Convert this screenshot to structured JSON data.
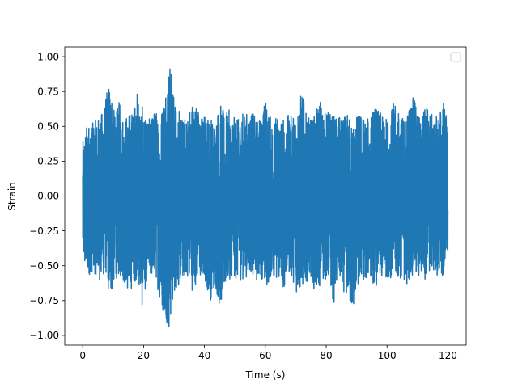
{
  "chart_data": {
    "type": "line",
    "title": "",
    "xlabel": "Time (s)",
    "ylabel": "Strain",
    "xlim": [
      -5.9,
      126.0
    ],
    "ylim": [
      -1.07,
      1.07
    ],
    "x_ticks": [
      0,
      20,
      40,
      60,
      80,
      100,
      120
    ],
    "x_tick_labels": [
      "0",
      "20",
      "40",
      "60",
      "80",
      "100",
      "120"
    ],
    "y_ticks": [
      -1.0,
      -0.75,
      -0.5,
      -0.25,
      0.0,
      0.25,
      0.5,
      0.75,
      1.0
    ],
    "y_tick_labels": [
      "−1.00",
      "−0.75",
      "−0.50",
      "−0.25",
      "0.00",
      "0.25",
      "0.50",
      "0.75",
      "1.00"
    ],
    "grid": false,
    "legend": {
      "placement": "top-right",
      "entries": []
    },
    "series": [
      {
        "x_range": [
          0,
          120
        ],
        "color": "#1f77b4",
        "envelope": {
          "x": [
            0,
            1.5,
            3,
            4.5,
            6,
            7.5,
            9,
            10.5,
            12,
            13.5,
            15,
            16.5,
            18,
            19.5,
            21,
            22.5,
            24,
            25.5,
            27,
            28.5,
            30,
            31.5,
            33,
            34.5,
            36,
            37.5,
            39,
            40.5,
            42,
            43.5,
            45,
            46.5,
            48,
            49.5,
            51,
            52.5,
            54,
            55.5,
            57,
            58.5,
            60,
            61.5,
            63,
            64.5,
            66,
            67.5,
            69,
            70.5,
            72,
            73.5,
            75,
            76.5,
            78,
            79.5,
            81,
            82.5,
            84,
            85.5,
            87,
            88.5,
            90,
            91.5,
            93,
            94.5,
            96,
            97.5,
            99,
            100.5,
            102,
            103.5,
            105,
            106.5,
            108,
            109.5,
            111,
            112.5,
            114,
            115.5,
            117,
            118.5,
            120
          ],
          "upper": [
            0.38,
            0.53,
            0.52,
            0.55,
            0.58,
            0.7,
            0.86,
            0.58,
            0.68,
            0.57,
            0.6,
            0.62,
            0.76,
            0.65,
            0.52,
            0.6,
            0.62,
            0.58,
            0.8,
            1.0,
            0.73,
            0.62,
            0.55,
            0.6,
            0.7,
            0.65,
            0.58,
            0.6,
            0.57,
            0.55,
            0.68,
            0.6,
            0.62,
            0.57,
            0.55,
            0.6,
            0.6,
            0.62,
            0.55,
            0.57,
            0.7,
            0.58,
            0.55,
            0.62,
            0.56,
            0.58,
            0.58,
            0.64,
            0.76,
            0.58,
            0.55,
            0.6,
            0.72,
            0.6,
            0.62,
            0.58,
            0.57,
            0.55,
            0.6,
            0.53,
            0.58,
            0.6,
            0.55,
            0.57,
            0.66,
            0.6,
            0.58,
            0.55,
            0.67,
            0.62,
            0.57,
            0.6,
            0.72,
            0.68,
            0.55,
            0.68,
            0.62,
            0.55,
            0.6,
            0.7,
            0.53
          ],
          "lower": [
            -0.5,
            -0.58,
            -0.55,
            -0.57,
            -0.62,
            -0.55,
            -0.78,
            -0.6,
            -0.58,
            -0.62,
            -0.7,
            -0.65,
            -0.58,
            -0.8,
            -0.62,
            -0.6,
            -0.58,
            -0.78,
            -0.86,
            -0.98,
            -0.7,
            -0.65,
            -0.6,
            -0.58,
            -0.68,
            -0.62,
            -0.6,
            -0.64,
            -0.75,
            -0.65,
            -0.8,
            -0.72,
            -0.6,
            -0.58,
            -0.62,
            -0.6,
            -0.58,
            -0.55,
            -0.62,
            -0.57,
            -0.7,
            -0.6,
            -0.58,
            -0.62,
            -0.68,
            -0.55,
            -0.6,
            -0.72,
            -0.66,
            -0.62,
            -0.58,
            -0.72,
            -0.65,
            -0.6,
            -0.62,
            -0.78,
            -0.6,
            -0.68,
            -0.72,
            -0.86,
            -0.68,
            -0.62,
            -0.6,
            -0.58,
            -0.66,
            -0.62,
            -0.6,
            -0.58,
            -0.6,
            -0.62,
            -0.58,
            -0.65,
            -0.57,
            -0.62,
            -0.58,
            -0.6,
            -0.56,
            -0.55,
            -0.58,
            -0.6,
            -0.47
          ]
        }
      }
    ]
  }
}
